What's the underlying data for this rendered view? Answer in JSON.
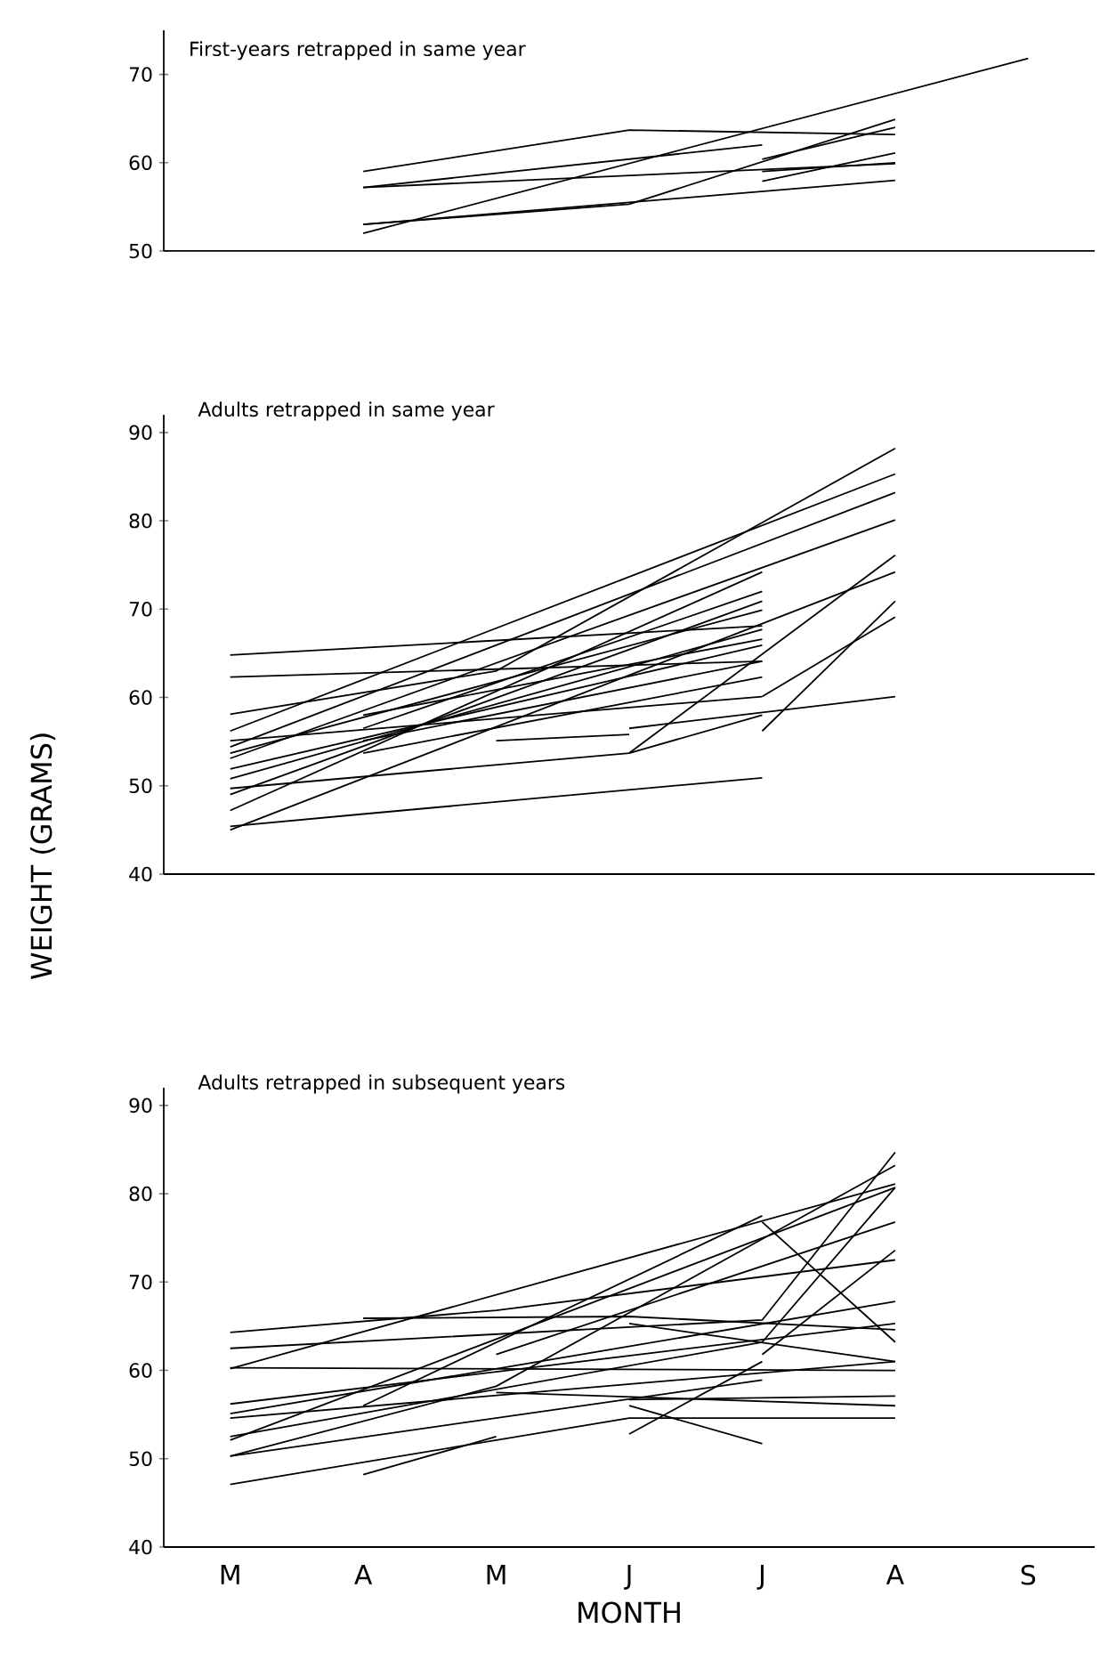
{
  "chart_data": [
    {
      "type": "line",
      "title": "First-years retrapped in same year",
      "categories": [
        null,
        null,
        null,
        null,
        null,
        null,
        null
      ],
      "ylim": [
        50,
        75
      ],
      "yticks": [
        50,
        60,
        70
      ],
      "series": [
        {
          "color": "#000000",
          "values": [
            null,
            59.0,
            null,
            63.7,
            null,
            63.2,
            null
          ]
        },
        {
          "color": "#000000",
          "values": [
            null,
            57.2,
            null,
            null,
            62.0,
            null,
            null
          ]
        },
        {
          "color": "#000000",
          "values": [
            null,
            57.2,
            null,
            null,
            null,
            59.9,
            null
          ]
        },
        {
          "color": "#000000",
          "values": [
            null,
            53.0,
            null,
            55.3,
            null,
            64.9,
            null
          ]
        },
        {
          "color": "#000000",
          "values": [
            null,
            52.0,
            null,
            null,
            null,
            null,
            71.8
          ]
        },
        {
          "color": "#000000",
          "values": [
            null,
            53.0,
            null,
            null,
            null,
            58.0,
            null
          ]
        },
        {
          "color": "#000000",
          "values": [
            null,
            null,
            null,
            null,
            57.9,
            61.1,
            null
          ]
        },
        {
          "color": "#000000",
          "values": [
            null,
            null,
            null,
            null,
            59.0,
            60.0,
            null
          ]
        },
        {
          "color": "#000000",
          "values": [
            null,
            null,
            null,
            null,
            60.4,
            64.0,
            null
          ]
        }
      ]
    },
    {
      "type": "line",
      "title": "Adults retrapped in same year",
      "ylabel": "WEIGHT  (GRAMS)",
      "categories": [
        null,
        null,
        null,
        null,
        null,
        null,
        null
      ],
      "ylim": [
        40,
        92
      ],
      "yticks": [
        40,
        50,
        60,
        70,
        80,
        90
      ],
      "series": [
        {
          "color": "#000000",
          "values": [
            64.8,
            null,
            null,
            null,
            68.1,
            null,
            null
          ]
        },
        {
          "color": "#000000",
          "values": [
            62.3,
            null,
            null,
            null,
            64.1,
            null,
            null
          ]
        },
        {
          "color": "#000000",
          "values": [
            58.1,
            null,
            63.0,
            null,
            null,
            88.2,
            null
          ]
        },
        {
          "color": "#000000",
          "values": [
            56.2,
            null,
            null,
            null,
            null,
            85.3,
            null
          ]
        },
        {
          "color": "#000000",
          "values": [
            54.4,
            null,
            null,
            null,
            null,
            83.2,
            null
          ]
        },
        {
          "color": "#000000",
          "values": [
            53.1,
            null,
            null,
            null,
            null,
            80.1,
            null
          ]
        },
        {
          "color": "#000000",
          "values": [
            49.0,
            null,
            null,
            null,
            70.9,
            null,
            null
          ]
        },
        {
          "color": "#000000",
          "values": [
            47.2,
            null,
            null,
            null,
            74.2,
            null,
            null
          ]
        },
        {
          "color": "#000000",
          "values": [
            45.0,
            null,
            null,
            null,
            null,
            74.2,
            null
          ]
        },
        {
          "color": "#000000",
          "values": [
            45.4,
            46.8,
            null,
            null,
            50.9,
            null,
            null
          ]
        },
        {
          "color": "#000000",
          "values": [
            50.8,
            null,
            null,
            null,
            67.7,
            null,
            null
          ]
        },
        {
          "color": "#000000",
          "values": [
            49.7,
            null,
            null,
            53.7,
            58.0,
            null,
            null
          ]
        },
        {
          "color": "#000000",
          "values": [
            55.1,
            null,
            null,
            null,
            60.1,
            null,
            null
          ]
        },
        {
          "color": "#000000",
          "values": [
            null,
            null,
            null,
            53.7,
            null,
            76.1,
            null
          ]
        },
        {
          "color": "#000000",
          "values": [
            null,
            null,
            null,
            null,
            56.2,
            70.9,
            null
          ]
        },
        {
          "color": "#000000",
          "values": [
            null,
            null,
            null,
            56.5,
            null,
            60.1,
            null
          ]
        },
        {
          "color": "#000000",
          "values": [
            null,
            null,
            null,
            null,
            60.1,
            69.1,
            null
          ]
        },
        {
          "color": "#000000",
          "values": [
            null,
            55.1,
            null,
            null,
            64.1,
            null,
            null
          ]
        },
        {
          "color": "#000000",
          "values": [
            null,
            58.0,
            null,
            null,
            66.6,
            null,
            null
          ]
        },
        {
          "color": "#000000",
          "values": [
            null,
            null,
            55.1,
            55.8,
            null,
            null,
            null
          ]
        },
        {
          "color": "#000000",
          "values": [
            53.7,
            null,
            null,
            null,
            69.9,
            null,
            null
          ]
        },
        {
          "color": "#000000",
          "values": [
            null,
            56.5,
            null,
            null,
            72.0,
            null,
            null
          ]
        },
        {
          "color": "#000000",
          "values": [
            51.9,
            null,
            null,
            null,
            65.9,
            null,
            null
          ]
        },
        {
          "color": "#000000",
          "values": [
            null,
            53.7,
            null,
            null,
            62.3,
            null,
            null
          ]
        }
      ]
    },
    {
      "type": "line",
      "title": "Adults retrapped in subsequent years",
      "xlabel": "MONTH",
      "categories": [
        "M",
        "A",
        "M",
        "J",
        "J",
        "A",
        "S"
      ],
      "ylim": [
        40,
        92
      ],
      "yticks": [
        40,
        50,
        60,
        70,
        80,
        90
      ],
      "series": [
        {
          "color": "#000000",
          "values": [
            60.2,
            null,
            null,
            null,
            null,
            81.1,
            null
          ]
        },
        {
          "color": "#000000",
          "values": [
            64.3,
            null,
            66.8,
            null,
            null,
            72.5,
            null
          ]
        },
        {
          "color": "#000000",
          "values": [
            null,
            65.9,
            null,
            66.1,
            null,
            64.6,
            null
          ]
        },
        {
          "color": "#000000",
          "values": [
            56.2,
            null,
            null,
            null,
            null,
            65.3,
            null
          ]
        },
        {
          "color": "#000000",
          "values": [
            55.1,
            null,
            null,
            null,
            null,
            67.8,
            null
          ]
        },
        {
          "color": "#000000",
          "values": [
            52.1,
            null,
            null,
            null,
            null,
            80.7,
            null
          ]
        },
        {
          "color": "#000000",
          "values": [
            50.3,
            null,
            58.2,
            null,
            null,
            83.2,
            null
          ]
        },
        {
          "color": "#000000",
          "values": [
            47.1,
            null,
            null,
            54.6,
            null,
            54.6,
            null
          ]
        },
        {
          "color": "#000000",
          "values": [
            null,
            48.2,
            52.5,
            null,
            null,
            null,
            null
          ]
        },
        {
          "color": "#000000",
          "values": [
            50.3,
            null,
            null,
            null,
            58.9,
            null,
            null
          ]
        },
        {
          "color": "#000000",
          "values": [
            60.3,
            null,
            null,
            null,
            null,
            60.0,
            null
          ]
        },
        {
          "color": "#000000",
          "values": [
            62.5,
            null,
            null,
            null,
            65.7,
            84.7,
            null
          ]
        },
        {
          "color": "#000000",
          "values": [
            null,
            null,
            null,
            56.0,
            51.7,
            null,
            null
          ]
        },
        {
          "color": "#000000",
          "values": [
            null,
            null,
            null,
            52.8,
            61.0,
            null,
            null
          ]
        },
        {
          "color": "#000000",
          "values": [
            null,
            null,
            null,
            null,
            76.8,
            63.2,
            null
          ]
        },
        {
          "color": "#000000",
          "values": [
            null,
            null,
            null,
            null,
            61.8,
            73.6,
            null
          ]
        },
        {
          "color": "#000000",
          "values": [
            null,
            null,
            null,
            65.3,
            null,
            61.0,
            null
          ]
        },
        {
          "color": "#000000",
          "values": [
            null,
            null,
            null,
            56.7,
            null,
            57.1,
            null
          ]
        },
        {
          "color": "#000000",
          "values": [
            null,
            56.0,
            null,
            null,
            77.5,
            null,
            null
          ]
        },
        {
          "color": "#000000",
          "values": [
            null,
            null,
            61.8,
            null,
            null,
            76.8,
            null
          ]
        },
        {
          "color": "#000000",
          "values": [
            54.6,
            null,
            null,
            null,
            null,
            61.0,
            null
          ]
        },
        {
          "color": "#000000",
          "values": [
            52.5,
            null,
            null,
            null,
            63.2,
            80.7,
            null
          ]
        },
        {
          "color": "#000000",
          "values": [
            null,
            null,
            57.5,
            null,
            null,
            56.0,
            null
          ]
        }
      ]
    }
  ]
}
